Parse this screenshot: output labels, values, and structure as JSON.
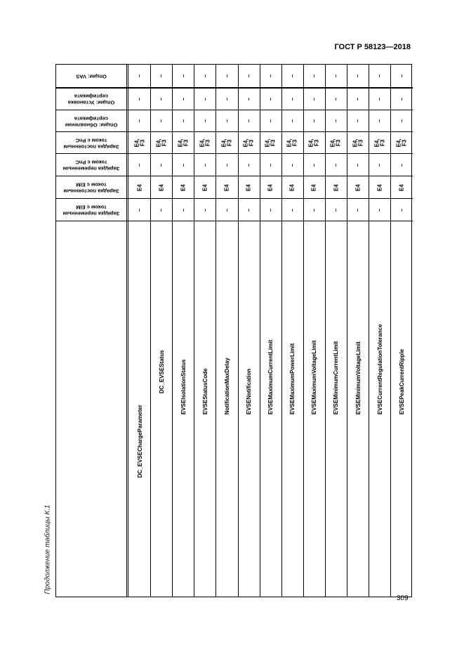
{
  "header": {
    "doc_title": "ГОСТ Р 58123—2018"
  },
  "caption": "Продолжение таблицы К.1",
  "page_number": "309",
  "table": {
    "column_headers": [
      "Опции: VAS",
      "Опции: Установка сертификата",
      "Опции: Обновление сертификата",
      "Зарядка постоянным током с PnC",
      "Зарядка переменным током с PnC",
      "Зарядка постоянным током с EIM",
      "Зарядка переменным током с EIM"
    ],
    "rows": [
      {
        "name": "DC_EVSEChargeParameter",
        "values": [
          "–",
          "–",
          "–",
          "E4,\nF3",
          "–",
          "E4",
          "–"
        ]
      },
      {
        "name": "DC_EVSEStatus",
        "values": [
          "–",
          "–",
          "–",
          "E4,\nF3",
          "–",
          "E4",
          "–"
        ]
      },
      {
        "name": "EVSEIsolationStatus",
        "values": [
          "–",
          "–",
          "–",
          "E4,\nF3",
          "–",
          "E4",
          "–"
        ]
      },
      {
        "name": "EVSEStatusCode",
        "values": [
          "–",
          "–",
          "–",
          "E4,\nF3",
          "–",
          "E4",
          "–"
        ]
      },
      {
        "name": "NotificationMaxDelay",
        "values": [
          "–",
          "–",
          "–",
          "E4,\nF3",
          "–",
          "E4",
          "–"
        ]
      },
      {
        "name": "EVSENotification",
        "values": [
          "–",
          "–",
          "–",
          "E4,\nF3",
          "–",
          "E4",
          "–"
        ]
      },
      {
        "name": "EVSEMaximumCurrentLimit",
        "values": [
          "–",
          "–",
          "–",
          "E4,\nF3",
          "–",
          "E4",
          "–"
        ]
      },
      {
        "name": "EVSEMaximumPowerLimit",
        "values": [
          "–",
          "–",
          "–",
          "E4,\nF3",
          "–",
          "E4",
          "–"
        ]
      },
      {
        "name": "EVSEMaximumVoltageLimit",
        "values": [
          "–",
          "–",
          "–",
          "E4,\nF3",
          "–",
          "E4",
          "–"
        ]
      },
      {
        "name": "EVSEMinimumCurrentLimit",
        "values": [
          "–",
          "–",
          "–",
          "E4,\nF3",
          "–",
          "E4",
          "–"
        ]
      },
      {
        "name": "EVSEMinimumVoltageLimit",
        "values": [
          "–",
          "–",
          "–",
          "E4,\nF3",
          "–",
          "E4",
          "–"
        ]
      },
      {
        "name": "EVSECurrentRegulationTolerance",
        "values": [
          "–",
          "–",
          "–",
          "E4,\nF3",
          "–",
          "E4",
          "–"
        ]
      },
      {
        "name": "EVSEPeakCurrentRipple",
        "values": [
          "–",
          "–",
          "–",
          "E4,\nF3",
          "–",
          "E4",
          "–"
        ]
      }
    ]
  }
}
